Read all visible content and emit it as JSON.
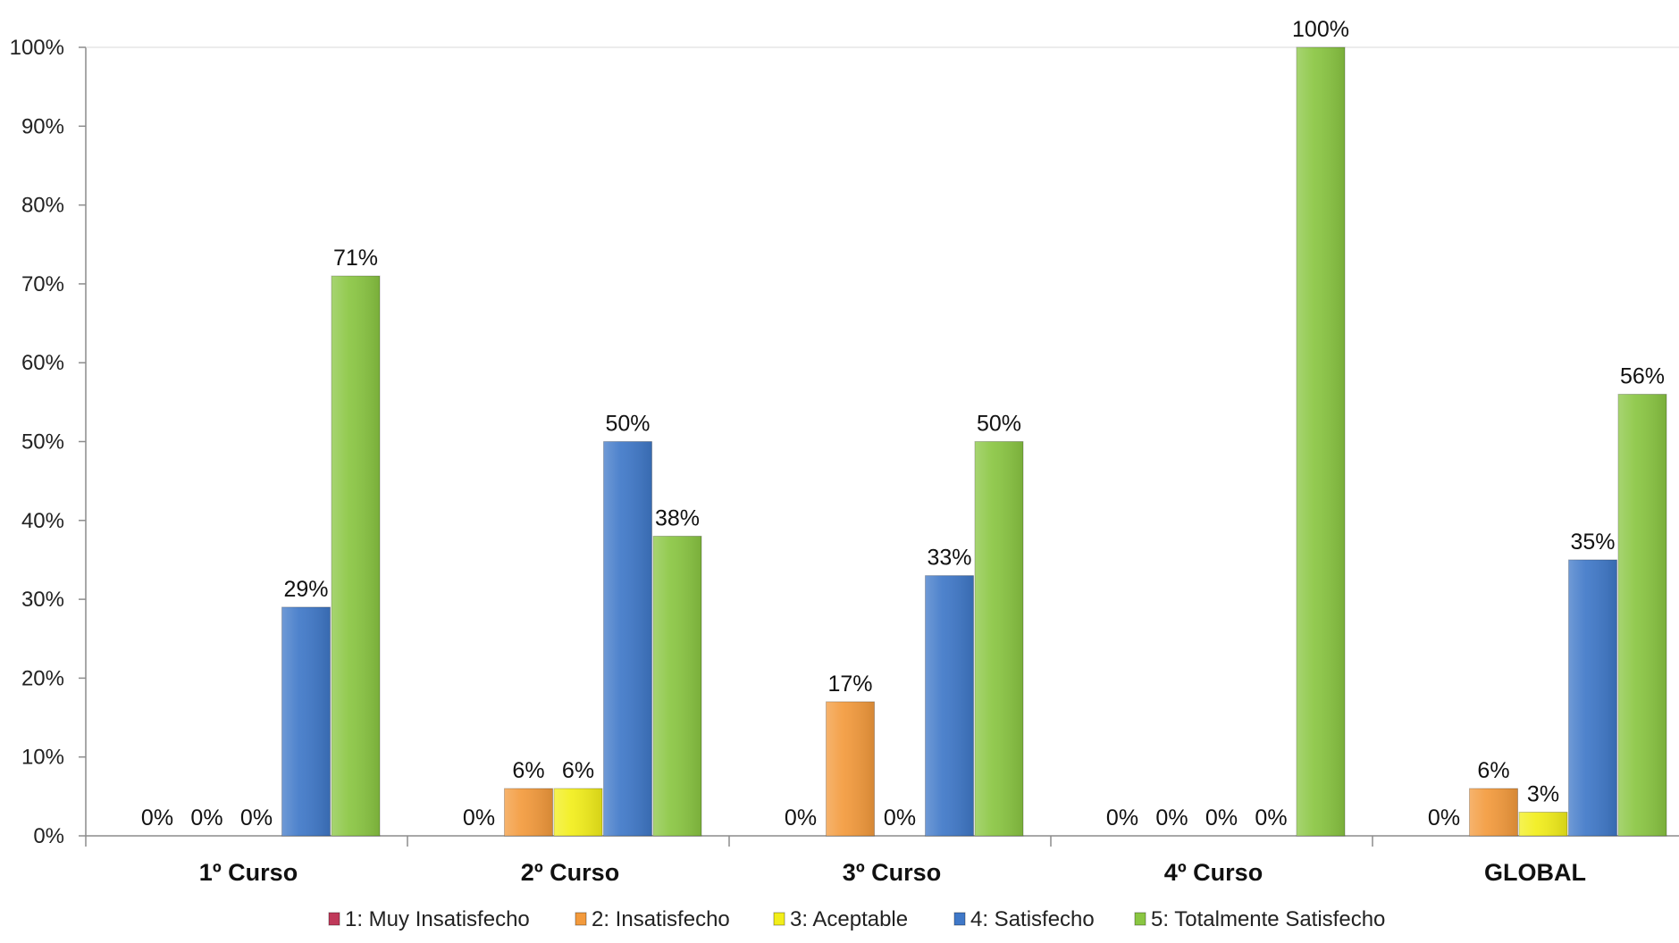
{
  "chart_data": {
    "type": "bar",
    "categories": [
      "1º Curso",
      "2º Curso",
      "3º Curso",
      "4º Curso",
      "GLOBAL"
    ],
    "series": [
      {
        "name": "1: Muy Insatisfecho",
        "color": "#c0395a",
        "values": [
          0,
          0,
          0,
          0,
          0
        ],
        "labels": [
          "0%",
          "0%",
          "0%",
          "0%",
          "0%"
        ]
      },
      {
        "name": "2: Insatisfecho",
        "color": "#f39a3c",
        "values": [
          0,
          6,
          17,
          0,
          6
        ],
        "labels": [
          "0%",
          "6%",
          "17%",
          "0%",
          "6%"
        ]
      },
      {
        "name": "3: Aceptable",
        "color": "#f2ee1a",
        "values": [
          0,
          6,
          0,
          0,
          3
        ],
        "labels": [
          "0%",
          "6%",
          "0%",
          "0%",
          "3%"
        ]
      },
      {
        "name": "4: Satisfecho",
        "color": "#3f78c8",
        "values": [
          29,
          50,
          33,
          0,
          35
        ],
        "labels": [
          "29%",
          "50%",
          "33%",
          "0%",
          "35%"
        ]
      },
      {
        "name": "5: Totalmente Satisfecho",
        "color": "#8ac642",
        "values": [
          71,
          38,
          50,
          100,
          56
        ],
        "labels": [
          "71%",
          "38%",
          "50%",
          "100%",
          "56%"
        ]
      }
    ],
    "yticks": [
      "0%",
      "10%",
      "20%",
      "30%",
      "40%",
      "50%",
      "60%",
      "70%",
      "80%",
      "90%",
      "100%"
    ],
    "ylim": [
      0,
      100
    ],
    "title": "",
    "xlabel": "",
    "ylabel": "",
    "grid": false,
    "legend_position": "bottom"
  }
}
